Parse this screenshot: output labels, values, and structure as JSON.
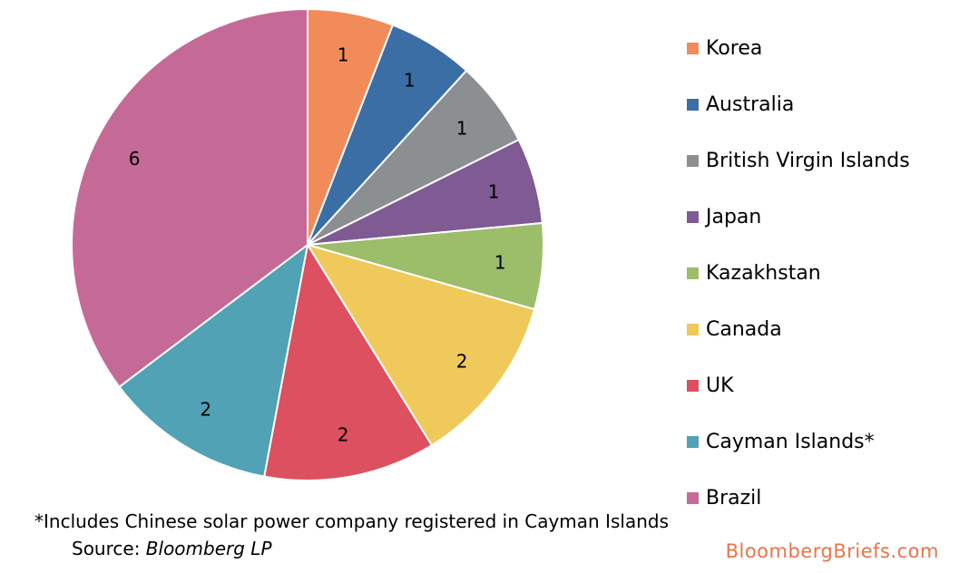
{
  "chart_data": {
    "type": "pie",
    "categories": [
      "Korea",
      "Australia",
      "British Virgin Islands",
      "Japan",
      "Kazakhstan",
      "Canada",
      "UK",
      "Cayman Islands*",
      "Brazil"
    ],
    "values": [
      1,
      1,
      1,
      1,
      1,
      2,
      2,
      2,
      6
    ],
    "colors": [
      "#f28b5a",
      "#3a6ea5",
      "#8c8f91",
      "#7f5a93",
      "#9cbd6a",
      "#efc95a",
      "#dc5060",
      "#50a2b4",
      "#c56a96"
    ],
    "start": "12 o'clock",
    "direction": "clockwise",
    "legend_position": "right"
  },
  "footnote": "*Includes Chinese solar power company registered in Cayman Islands",
  "source": {
    "prefix": "Source: ",
    "name": "Bloomberg LP"
  },
  "brand": {
    "text": "BloombergBriefs.com",
    "color": "#e8744a"
  }
}
